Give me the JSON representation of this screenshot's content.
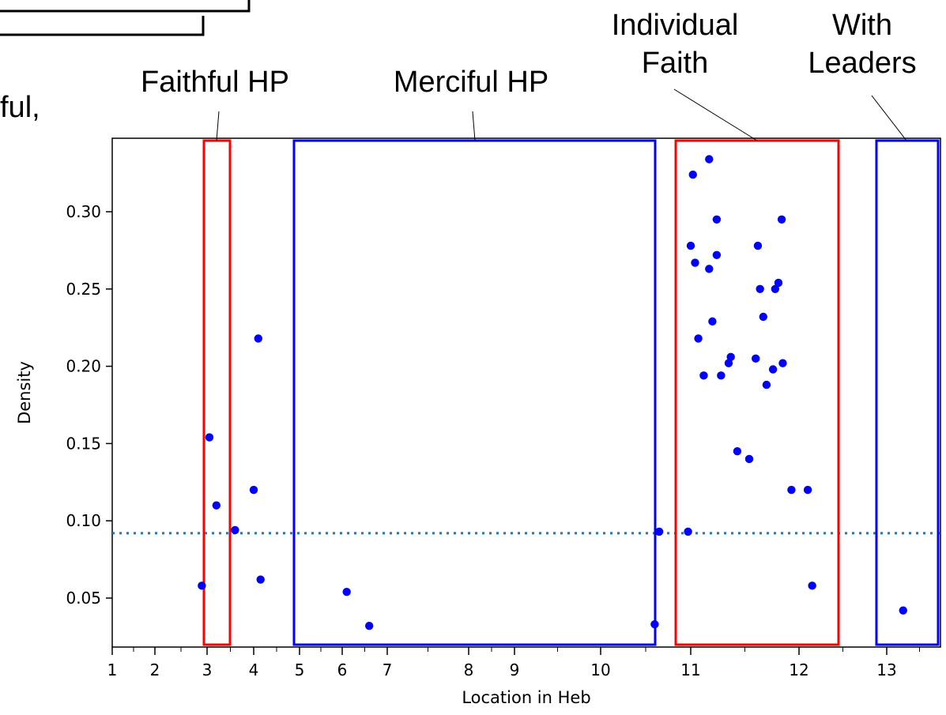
{
  "page_fragment": {
    "text": "ful,"
  },
  "chart_data": {
    "type": "scatter",
    "xlabel": "Location in Heb",
    "ylabel": "Density",
    "x_ticks_major": [
      "1",
      "2",
      "3",
      "4",
      "5",
      "6",
      "7",
      "8",
      "9",
      "10",
      "11",
      "12",
      "13"
    ],
    "y_ticks": [
      "0.05",
      "0.10",
      "0.15",
      "0.20",
      "0.25",
      "0.30"
    ],
    "ylim": [
      0.018,
      0.345
    ],
    "grid": false,
    "reference_line": {
      "y": 0.092,
      "style": "dotted",
      "color": "#1f77b4"
    },
    "marker_color": "#0000ff",
    "regions": [
      {
        "label": "Faithful HP",
        "color": "#ff0000"
      },
      {
        "label": "Merciful HP",
        "color": "#0000ff"
      },
      {
        "label": "Individual Faith",
        "color": "#ff0000"
      },
      {
        "label": "With Leaders",
        "color": "#0000ff"
      }
    ],
    "points": [
      {
        "x": 2.9,
        "y": 0.058
      },
      {
        "x": 3.05,
        "y": 0.154
      },
      {
        "x": 3.2,
        "y": 0.11
      },
      {
        "x": 3.6,
        "y": 0.094
      },
      {
        "x": 4.0,
        "y": 0.12
      },
      {
        "x": 4.1,
        "y": 0.218
      },
      {
        "x": 4.15,
        "y": 0.062
      },
      {
        "x": 6.1,
        "y": 0.054
      },
      {
        "x": 6.6,
        "y": 0.032
      },
      {
        "x": 10.6,
        "y": 0.033
      },
      {
        "x": 10.65,
        "y": 0.093
      },
      {
        "x": 10.97,
        "y": 0.093
      },
      {
        "x": 11.0,
        "y": 0.278
      },
      {
        "x": 11.02,
        "y": 0.324
      },
      {
        "x": 11.04,
        "y": 0.267
      },
      {
        "x": 11.07,
        "y": 0.218
      },
      {
        "x": 11.12,
        "y": 0.194
      },
      {
        "x": 11.17,
        "y": 0.263
      },
      {
        "x": 11.17,
        "y": 0.334
      },
      {
        "x": 11.2,
        "y": 0.229
      },
      {
        "x": 11.24,
        "y": 0.295
      },
      {
        "x": 11.24,
        "y": 0.272
      },
      {
        "x": 11.28,
        "y": 0.194
      },
      {
        "x": 11.35,
        "y": 0.202
      },
      {
        "x": 11.37,
        "y": 0.206
      },
      {
        "x": 11.43,
        "y": 0.145
      },
      {
        "x": 11.54,
        "y": 0.14
      },
      {
        "x": 11.6,
        "y": 0.205
      },
      {
        "x": 11.62,
        "y": 0.278
      },
      {
        "x": 11.64,
        "y": 0.25
      },
      {
        "x": 11.67,
        "y": 0.232
      },
      {
        "x": 11.7,
        "y": 0.188
      },
      {
        "x": 11.76,
        "y": 0.198
      },
      {
        "x": 11.78,
        "y": 0.25
      },
      {
        "x": 11.81,
        "y": 0.254
      },
      {
        "x": 11.84,
        "y": 0.295
      },
      {
        "x": 11.85,
        "y": 0.202
      },
      {
        "x": 11.93,
        "y": 0.12
      },
      {
        "x": 12.1,
        "y": 0.12
      },
      {
        "x": 12.15,
        "y": 0.058
      },
      {
        "x": 13.25,
        "y": 0.042
      }
    ]
  }
}
